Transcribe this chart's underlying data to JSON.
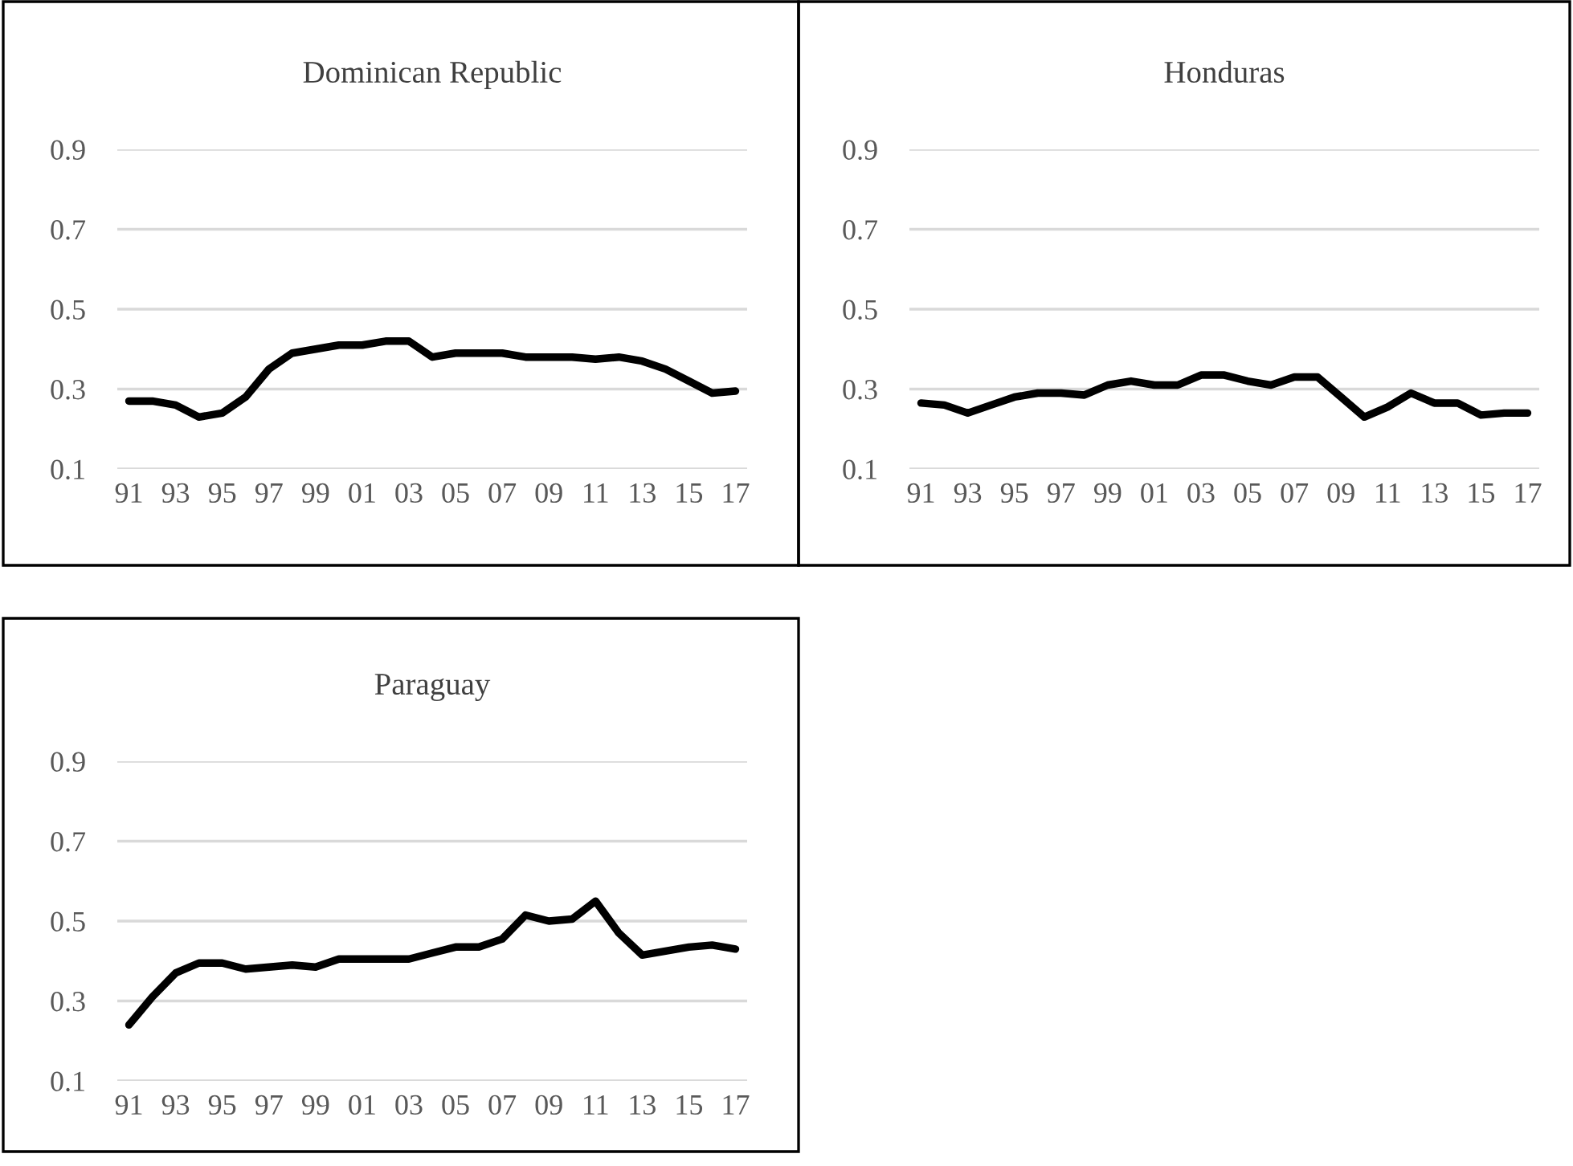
{
  "chart_data": [
    {
      "type": "line",
      "title": "Dominican Republic",
      "categories": [
        "91",
        null,
        "93",
        null,
        "95",
        null,
        "97",
        null,
        "99",
        null,
        "01",
        null,
        "03",
        null,
        "05",
        null,
        "07",
        null,
        "09",
        null,
        "11",
        null,
        "13",
        null,
        "15",
        null,
        "17"
      ],
      "series": [
        {
          "color": "#000000",
          "values": [
            0.27,
            0.27,
            0.26,
            0.23,
            0.24,
            0.28,
            0.35,
            0.39,
            0.4,
            0.41,
            0.41,
            0.42,
            0.42,
            0.38,
            0.39,
            0.39,
            0.39,
            0.38,
            0.38,
            0.38,
            0.375,
            0.38,
            0.37,
            0.35,
            0.32,
            0.29,
            0.295
          ]
        }
      ],
      "ylim": [
        0.1,
        0.9
      ],
      "yticks": [
        0.1,
        0.3,
        0.5,
        0.7,
        0.9
      ],
      "grid": "y",
      "line_style": "solid"
    },
    {
      "type": "line",
      "title": "Honduras",
      "categories": [
        "91",
        null,
        "93",
        null,
        "95",
        null,
        "97",
        null,
        "99",
        null,
        "01",
        null,
        "03",
        null,
        "05",
        null,
        "07",
        null,
        "09",
        null,
        "11",
        null,
        "13",
        null,
        "15",
        null,
        "17"
      ],
      "series": [
        {
          "color": "#000000",
          "values": [
            0.265,
            0.26,
            0.24,
            0.26,
            0.28,
            0.29,
            0.29,
            0.285,
            0.31,
            0.32,
            0.31,
            0.31,
            0.335,
            0.335,
            0.32,
            0.31,
            0.33,
            0.33,
            0.28,
            0.23,
            0.255,
            0.29,
            0.265,
            0.265,
            0.235,
            0.24,
            0.24
          ]
        }
      ],
      "ylim": [
        0.1,
        0.9
      ],
      "yticks": [
        0.1,
        0.3,
        0.5,
        0.7,
        0.9
      ],
      "grid": "y",
      "line_style": "solid"
    },
    {
      "type": "line",
      "title": "Paraguay",
      "categories": [
        "91",
        null,
        "93",
        null,
        "95",
        null,
        "97",
        null,
        "99",
        null,
        "01",
        null,
        "03",
        null,
        "05",
        null,
        "07",
        null,
        "09",
        null,
        "11",
        null,
        "13",
        null,
        "15",
        null,
        "17"
      ],
      "series": [
        {
          "color": "#000000",
          "values": [
            0.24,
            0.31,
            0.37,
            0.395,
            0.395,
            0.38,
            0.385,
            0.39,
            0.385,
            0.405,
            0.405,
            0.405,
            0.405,
            0.42,
            0.435,
            0.435,
            0.455,
            0.515,
            0.5,
            0.505,
            0.55,
            0.47,
            0.415,
            0.425,
            0.435,
            0.44,
            0.43
          ]
        }
      ],
      "ylim": [
        0.1,
        0.9
      ],
      "yticks": [
        0.1,
        0.3,
        0.5,
        0.7,
        0.9
      ],
      "grid": "y",
      "line_style": "solid"
    }
  ]
}
